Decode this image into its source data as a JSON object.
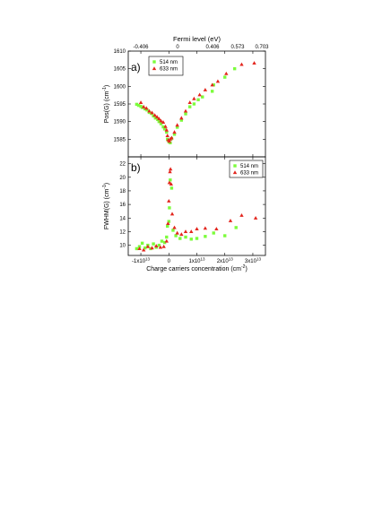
{
  "figure": {
    "top_axis_title": "Fermi level (eV)",
    "top_ticks": [
      "-0.406",
      "0",
      "0.406",
      "0.573",
      "0.703"
    ],
    "x_axis_title": "Charge carriers concentration (cm",
    "x_axis_title_sup": "-2",
    "x_axis_title_end": ")",
    "x_ticks": [
      {
        "value": -10000000000000.0,
        "mantissa": "-1x10",
        "exp": "13"
      },
      {
        "value": 0,
        "mantissa": "0",
        "exp": ""
      },
      {
        "value": 10000000000000.0,
        "mantissa": "1x10",
        "exp": "13"
      },
      {
        "value": 20000000000000.0,
        "mantissa": "2x10",
        "exp": "13"
      },
      {
        "value": 30000000000000.0,
        "mantissa": "3x10",
        "exp": "13"
      }
    ]
  },
  "chart_data": [
    {
      "type": "scatter",
      "panel": "a)",
      "ylabel": "Pos(G) (cm",
      "ylabel_sup": "-1",
      "ylabel_end": ")",
      "xlim": [
        -14500000000000.0,
        34500000000000.0
      ],
      "ylim": [
        1580,
        1610
      ],
      "yticks": [
        1585,
        1590,
        1595,
        1600,
        1605,
        1610
      ],
      "legend_position": "top-left",
      "series": [
        {
          "name": "514 nm",
          "color": "#7CFC3C",
          "marker": "square",
          "points": [
            [
              -11500000000000.0,
              1594.9
            ],
            [
              -10800000000000.0,
              1594.6
            ],
            [
              -10000000000000.0,
              1594.3
            ],
            [
              -9500000000000.0,
              1594.0
            ],
            [
              -8500000000000.0,
              1593.6
            ],
            [
              -7800000000000.0,
              1593.3
            ],
            [
              -7000000000000.0,
              1592.6
            ],
            [
              -6200000000000.0,
              1592.3
            ],
            [
              -5500000000000.0,
              1591.6
            ],
            [
              -4800000000000.0,
              1591.0
            ],
            [
              -4000000000000.0,
              1590.6
            ],
            [
              -3500000000000.0,
              1590.0
            ],
            [
              -2800000000000.0,
              1589.4
            ],
            [
              -2000000000000.0,
              1588.5
            ],
            [
              -1500000000000.0,
              1587.9
            ],
            [
              -800000000000.0,
              1587.0
            ],
            [
              -500000000000.0,
              1585.0
            ],
            [
              0.0,
              1584.3
            ],
            [
              500000000000.0,
              1584.0
            ],
            [
              1000000000000.0,
              1585.2
            ],
            [
              2000000000000.0,
              1586.4
            ],
            [
              3000000000000.0,
              1588.4
            ],
            [
              4500000000000.0,
              1590.4
            ],
            [
              6000000000000.0,
              1592.2
            ],
            [
              7500000000000.0,
              1594.2
            ],
            [
              9000000000000.0,
              1595.0
            ],
            [
              10500000000000.0,
              1596.2
            ],
            [
              12000000000000.0,
              1597.0
            ],
            [
              15500000000000.0,
              1598.6
            ],
            [
              16000000000000.0,
              1600.4
            ],
            [
              20000000000000.0,
              1602.6
            ],
            [
              23500000000000.0,
              1605.0
            ]
          ]
        },
        {
          "name": "633 nm",
          "color": "#E3261E",
          "marker": "triangle",
          "points": [
            [
              -10000000000000.0,
              1595.4
            ],
            [
              -9000000000000.0,
              1594.2
            ],
            [
              -8000000000000.0,
              1593.8
            ],
            [
              -7000000000000.0,
              1593.0
            ],
            [
              -6000000000000.0,
              1592.5
            ],
            [
              -5000000000000.0,
              1591.8
            ],
            [
              -4200000000000.0,
              1591.3
            ],
            [
              -3500000000000.0,
              1590.8
            ],
            [
              -2800000000000.0,
              1590.2
            ],
            [
              -2000000000000.0,
              1589.8
            ],
            [
              -1200000000000.0,
              1588.6
            ],
            [
              -800000000000.0,
              1587.6
            ],
            [
              -500000000000.0,
              1586.0
            ],
            [
              -200000000000.0,
              1584.8
            ],
            [
              200000000000.0,
              1584.4
            ],
            [
              500000000000.0,
              1585.0
            ],
            [
              1000000000000.0,
              1585.4
            ],
            [
              2000000000000.0,
              1587.0
            ],
            [
              3000000000000.0,
              1589.0
            ],
            [
              4500000000000.0,
              1591.0
            ],
            [
              6000000000000.0,
              1593.0
            ],
            [
              7500000000000.0,
              1595.4
            ],
            [
              9000000000000.0,
              1596.5
            ],
            [
              11000000000000.0,
              1597.6
            ],
            [
              13000000000000.0,
              1599.0
            ],
            [
              15500000000000.0,
              1600.4
            ],
            [
              17500000000000.0,
              1601.4
            ],
            [
              20500000000000.0,
              1603.6
            ],
            [
              26000000000000.0,
              1606.2
            ],
            [
              30500000000000.0,
              1606.6
            ]
          ]
        }
      ]
    },
    {
      "type": "scatter",
      "panel": "b)",
      "ylabel": "FWHM(G) (cm",
      "ylabel_sup": "-1",
      "ylabel_end": ")",
      "xlim": [
        -14500000000000.0,
        34500000000000.0
      ],
      "ylim": [
        8.5,
        23
      ],
      "yticks": [
        10,
        12,
        14,
        16,
        18,
        20,
        22
      ],
      "legend_position": "top-right",
      "series": [
        {
          "name": "514 nm",
          "color": "#7CFC3C",
          "marker": "square",
          "points": [
            [
              -11500000000000.0,
              9.5
            ],
            [
              -10500000000000.0,
              9.8
            ],
            [
              -9500000000000.0,
              10.3
            ],
            [
              -8500000000000.0,
              9.6
            ],
            [
              -7500000000000.0,
              10.0
            ],
            [
              -6500000000000.0,
              9.5
            ],
            [
              -5500000000000.0,
              10.2
            ],
            [
              -4500000000000.0,
              9.7
            ],
            [
              -3500000000000.0,
              10.0
            ],
            [
              -2500000000000.0,
              10.6
            ],
            [
              -1500000000000.0,
              10.4
            ],
            [
              -800000000000.0,
              11.2
            ],
            [
              -500000000000.0,
              12.8
            ],
            [
              0.0,
              13.5
            ],
            [
              200000000000.0,
              15.5
            ],
            [
              500000000000.0,
              19.6
            ],
            [
              1000000000000.0,
              18.4
            ],
            [
              1500000000000.0,
              12.2
            ],
            [
              2500000000000.0,
              11.4
            ],
            [
              4000000000000.0,
              11.0
            ],
            [
              6000000000000.0,
              11.2
            ],
            [
              8000000000000.0,
              10.9
            ],
            [
              10000000000000.0,
              11.0
            ],
            [
              13000000000000.0,
              11.3
            ],
            [
              16000000000000.0,
              11.8
            ],
            [
              20000000000000.0,
              11.4
            ],
            [
              24000000000000.0,
              12.6
            ]
          ]
        },
        {
          "name": "633 nm",
          "color": "#E3261E",
          "marker": "triangle",
          "points": [
            [
              -10500000000000.0,
              9.5
            ],
            [
              -9000000000000.0,
              9.3
            ],
            [
              -7500000000000.0,
              9.8
            ],
            [
              -6000000000000.0,
              9.6
            ],
            [
              -4500000000000.0,
              9.9
            ],
            [
              -3000000000000.0,
              9.7
            ],
            [
              -1800000000000.0,
              9.8
            ],
            [
              -800000000000.0,
              10.6
            ],
            [
              -300000000000.0,
              13.2
            ],
            [
              0.0,
              16.5
            ],
            [
              200000000000.0,
              19.2
            ],
            [
              400000000000.0,
              20.8
            ],
            [
              600000000000.0,
              21.2
            ],
            [
              800000000000.0,
              19.0
            ],
            [
              1200000000000.0,
              14.6
            ],
            [
              2000000000000.0,
              12.6
            ],
            [
              3000000000000.0,
              11.8
            ],
            [
              4500000000000.0,
              11.6
            ],
            [
              6000000000000.0,
              12.0
            ],
            [
              8000000000000.0,
              12.0
            ],
            [
              10000000000000.0,
              12.4
            ],
            [
              13000000000000.0,
              12.5
            ],
            [
              17000000000000.0,
              12.4
            ],
            [
              22000000000000.0,
              13.6
            ],
            [
              26000000000000.0,
              14.4
            ],
            [
              31000000000000.0,
              14.0
            ]
          ]
        }
      ]
    }
  ]
}
